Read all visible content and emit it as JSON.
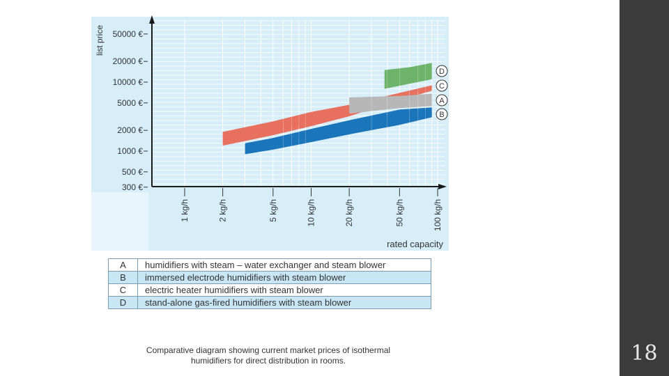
{
  "slide": {
    "number": "18"
  },
  "caption": {
    "line1": "Comparative diagram showing current market prices of isothermal",
    "line2": "humidifiers for direct distribution in rooms."
  },
  "legend_table": [
    {
      "key": "A",
      "text": "humidifiers with steam – water exchanger and steam blower"
    },
    {
      "key": "B",
      "text": "immersed electrode humidifiers with steam blower"
    },
    {
      "key": "C",
      "text": "electric heater humidifiers with steam blower"
    },
    {
      "key": "D",
      "text": "stand-alone gas-fired humidifiers with steam blower"
    }
  ],
  "chart_data": {
    "type": "area",
    "ylabel": "list price",
    "xlabel": "rated capacity",
    "y_scale": "log",
    "x_scale": "log",
    "grid": true,
    "background": "#d7eef9",
    "y_ticks": [
      {
        "value": 300,
        "label": "300 €"
      },
      {
        "value": 500,
        "label": "500 €"
      },
      {
        "value": 1000,
        "label": "1000 €"
      },
      {
        "value": 2000,
        "label": "2000 €"
      },
      {
        "value": 5000,
        "label": "5000 €"
      },
      {
        "value": 10000,
        "label": "10000 €"
      },
      {
        "value": 20000,
        "label": "20000 €"
      },
      {
        "value": 50000,
        "label": "50000 €"
      }
    ],
    "x_ticks": [
      {
        "value": 1,
        "label": "1 kg/h"
      },
      {
        "value": 2,
        "label": "2 kg/h"
      },
      {
        "value": 5,
        "label": "5 kg/h"
      },
      {
        "value": 10,
        "label": "10 kg/h"
      },
      {
        "value": 20,
        "label": "20 kg/h"
      },
      {
        "value": 50,
        "label": "50 kg/h"
      },
      {
        "value": 100,
        "label": "100 kg/h"
      }
    ],
    "series": [
      {
        "name": "C",
        "color": "#e8705f",
        "x": [
          2,
          5,
          10,
          20,
          50,
          90
        ],
        "lower": [
          1200,
          1700,
          2300,
          3200,
          5500,
          7500
        ],
        "upper": [
          1900,
          2700,
          3700,
          4700,
          7000,
          9000
        ]
      },
      {
        "name": "B",
        "color": "#1b75bb",
        "x": [
          3,
          5,
          10,
          20,
          50,
          90
        ],
        "lower": [
          900,
          1050,
          1350,
          1750,
          2400,
          3100
        ],
        "upper": [
          1300,
          1550,
          2100,
          2800,
          4000,
          4300
        ]
      },
      {
        "name": "A",
        "color": "#b7b7b7",
        "x": [
          20,
          50,
          90
        ],
        "lower": [
          3500,
          4200,
          4500
        ],
        "upper": [
          6000,
          6300,
          6800
        ]
      },
      {
        "name": "D",
        "color": "#6db36a",
        "x": [
          38,
          60,
          90
        ],
        "lower": [
          8000,
          9500,
          11000
        ],
        "upper": [
          15000,
          16500,
          19000
        ]
      }
    ]
  }
}
